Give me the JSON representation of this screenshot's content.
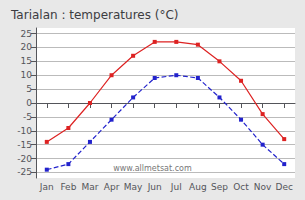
{
  "chart_data": {
    "type": "line",
    "title": "Tarialan : temperatures (°C)",
    "categories": [
      "Jan",
      "Feb",
      "Mar",
      "Apr",
      "May",
      "Jun",
      "Jul",
      "Aug",
      "Sep",
      "Oct",
      "Nov",
      "Dec"
    ],
    "series": [
      {
        "color": "#dd2222",
        "marker": "square",
        "line_style": "solid",
        "values": [
          -14,
          -9,
          0,
          10,
          17,
          22,
          22,
          21,
          15,
          8,
          -4,
          -13
        ]
      },
      {
        "color": "#2222cc",
        "marker": "square",
        "line_style": "dashed",
        "values": [
          -24,
          -22,
          -14,
          -6,
          2,
          9,
          10,
          9,
          2,
          -6,
          -15,
          -22
        ]
      }
    ],
    "ylim": [
      -27,
      27
    ],
    "yticks": [
      -25,
      -20,
      -15,
      -10,
      -5,
      0,
      5,
      10,
      15,
      20,
      25
    ],
    "grid": true,
    "annotations": [
      "www.allmetsat.com"
    ]
  }
}
